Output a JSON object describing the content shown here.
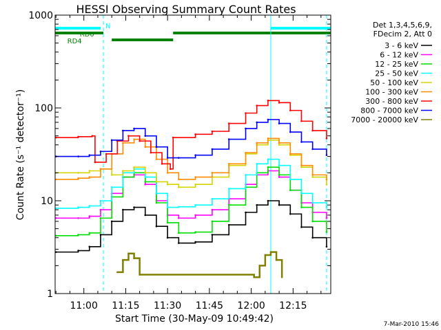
{
  "chart_data": {
    "type": "line",
    "title": "HESSI Observing Summary Count Rates",
    "xlabel": "Start Time (30-May-09 10:49:42)",
    "ylabel": "Count Rate (s⁻¹ detector⁻¹)",
    "yscale": "log",
    "ylim": [
      1,
      1000
    ],
    "xlim": [
      "10:49:42",
      "12:28:30"
    ],
    "x_ticks": [
      "11:00",
      "11:15",
      "11:30",
      "11:45",
      "12:00",
      "12:15"
    ],
    "y_ticks": [
      "1",
      "10",
      "100",
      "1000"
    ],
    "footer": "7-Mar-2010 15:46",
    "legend_header": [
      "Det 1,3,4,5,6,9,",
      "FDecim 2, Att 0"
    ],
    "legend_position": "right",
    "series": [
      {
        "name": "3 - 6 keV",
        "color": "#000000",
        "x": [
          "10:50",
          "10:58",
          "11:02",
          "11:06",
          "11:10",
          "11:14",
          "11:18",
          "11:22",
          "11:26",
          "11:30",
          "11:34",
          "11:40",
          "11:46",
          "11:52",
          "11:58",
          "12:02",
          "12:06",
          "12:10",
          "12:14",
          "12:18",
          "12:22",
          "12:27"
        ],
        "values": [
          2.8,
          2.9,
          3.2,
          4.3,
          6.0,
          8.0,
          8.5,
          7.0,
          5.3,
          4.0,
          3.5,
          3.6,
          4.3,
          5.5,
          7.5,
          9.0,
          10.0,
          9.0,
          7.2,
          5.2,
          4.0,
          3.2
        ]
      },
      {
        "name": "6 - 12 keV",
        "color": "#ff00ff",
        "x": [
          "10:50",
          "10:58",
          "11:02",
          "11:06",
          "11:10",
          "11:14",
          "11:18",
          "11:22",
          "11:26",
          "11:30",
          "11:34",
          "11:40",
          "11:46",
          "11:52",
          "11:58",
          "12:02",
          "12:06",
          "12:10",
          "12:14",
          "12:18",
          "12:22",
          "12:27"
        ],
        "values": [
          6.5,
          6.5,
          6.8,
          8.0,
          12.0,
          18.0,
          19.0,
          15.0,
          10.0,
          7.0,
          6.5,
          7.0,
          8.0,
          10.5,
          15.0,
          19.0,
          21.0,
          18.0,
          13.0,
          9.5,
          7.5,
          6.5
        ]
      },
      {
        "name": "12 - 25 keV",
        "color": "#00dd00",
        "x": [
          "10:50",
          "10:58",
          "11:02",
          "11:06",
          "11:10",
          "11:14",
          "11:18",
          "11:22",
          "11:26",
          "11:30",
          "11:34",
          "11:40",
          "11:46",
          "11:52",
          "11:58",
          "12:02",
          "12:06",
          "12:10",
          "12:14",
          "12:18",
          "12:22",
          "12:27"
        ],
        "values": [
          4.2,
          4.3,
          4.5,
          6.5,
          11.0,
          18.0,
          20.0,
          16.0,
          9.5,
          5.8,
          4.5,
          4.6,
          6.0,
          9.0,
          14.0,
          20.0,
          23.0,
          19.0,
          13.0,
          8.5,
          6.0,
          4.6
        ]
      },
      {
        "name": "25 - 50 keV",
        "color": "#00ffff",
        "x": [
          "10:50",
          "10:58",
          "11:02",
          "11:06",
          "11:10",
          "11:14",
          "11:18",
          "11:22",
          "11:26",
          "11:30",
          "11:34",
          "11:40",
          "11:46",
          "11:52",
          "11:58",
          "12:02",
          "12:06",
          "12:10",
          "12:14",
          "12:18",
          "12:22",
          "12:27"
        ],
        "values": [
          8.3,
          8.5,
          8.8,
          10.0,
          14.0,
          20.0,
          22.0,
          18.0,
          12.0,
          8.5,
          8.6,
          9.0,
          10.5,
          13.5,
          19.0,
          25.0,
          28.0,
          24.0,
          17.0,
          12.0,
          9.5,
          8.5
        ]
      },
      {
        "name": "50 - 100 keV",
        "color": "#d4d400",
        "x": [
          "10:50",
          "10:58",
          "11:02",
          "11:06",
          "11:10",
          "11:14",
          "11:18",
          "11:22",
          "11:26",
          "11:30",
          "11:34",
          "11:40",
          "11:46",
          "11:52",
          "11:58",
          "12:02",
          "12:06",
          "12:10",
          "12:14",
          "12:18",
          "12:22",
          "12:27"
        ],
        "values": [
          20,
          20,
          21,
          22,
          19,
          21,
          23,
          20,
          16,
          15,
          14,
          15,
          18,
          24,
          32,
          40,
          45,
          40,
          31,
          23,
          18,
          15
        ]
      },
      {
        "name": "100 - 300 keV",
        "color": "#ff8c00",
        "x": [
          "10:50",
          "10:58",
          "11:02",
          "11:06",
          "11:10",
          "11:14",
          "11:18",
          "11:22",
          "11:26",
          "11:30",
          "11:34",
          "11:40",
          "11:46",
          "11:52",
          "11:58",
          "12:02",
          "12:06",
          "12:10",
          "12:14",
          "12:18",
          "12:22",
          "12:27"
        ],
        "values": [
          17,
          17.5,
          18,
          22,
          32,
          42,
          46,
          38,
          28,
          20,
          17,
          18,
          20,
          25,
          33,
          42,
          47,
          42,
          32,
          24,
          19,
          17
        ]
      },
      {
        "name": "300 - 800 keV",
        "color": "#ff0000",
        "x": [
          "10:50",
          "10:58",
          "11:03",
          "11:04",
          "11:08",
          "11:12",
          "11:16",
          "11:20",
          "11:24",
          "11:28",
          "11:31",
          "11:32",
          "11:40",
          "11:46",
          "11:52",
          "11:58",
          "12:02",
          "12:06",
          "12:10",
          "12:14",
          "12:18",
          "12:22",
          "12:27"
        ],
        "values": [
          48,
          49,
          50,
          26,
          32,
          44,
          50,
          44,
          33,
          25,
          22,
          48,
          52,
          56,
          68,
          88,
          106,
          120,
          114,
          94,
          72,
          57,
          47
        ]
      },
      {
        "name": "800 - 7000 keV",
        "color": "#0000ff",
        "x": [
          "10:50",
          "10:58",
          "11:02",
          "11:06",
          "11:10",
          "11:14",
          "11:18",
          "11:22",
          "11:26",
          "11:30",
          "11:34",
          "11:40",
          "11:46",
          "11:52",
          "11:58",
          "12:02",
          "12:06",
          "12:10",
          "12:14",
          "12:18",
          "12:22",
          "12:27"
        ],
        "values": [
          30,
          30,
          31,
          34,
          45,
          57,
          60,
          50,
          38,
          29,
          29,
          31,
          36,
          46,
          60,
          70,
          75,
          68,
          55,
          43,
          36,
          31
        ]
      },
      {
        "name": "7000 - 20000 keV",
        "color": "#808000",
        "x": [
          "11:12",
          "11:14",
          "11:16",
          "11:18",
          "11:20",
          "12:01",
          "12:03",
          "12:05",
          "12:07",
          "12:09",
          "12:11"
        ],
        "values": [
          1.7,
          2.3,
          2.7,
          2.4,
          1.6,
          1.5,
          2.0,
          2.6,
          2.8,
          2.3,
          1.5
        ]
      }
    ],
    "markers": {
      "vertical_lines_dashed": [
        "11:07",
        "12:27"
      ],
      "vertical_lines_solid": [
        "12:07"
      ],
      "flag_bars": [
        {
          "label": "N",
          "color": "#00ffff",
          "spans": [
            [
              "10:49:42",
              "11:06"
            ],
            [
              "12:07",
              "12:28:30"
            ]
          ]
        },
        {
          "label": "RD0",
          "color": "#008000",
          "spans": [
            [
              "10:49:42",
              "11:07"
            ],
            [
              "11:32",
              "12:28:30"
            ]
          ]
        },
        {
          "label": "RD4",
          "color": "#008000",
          "spans": [
            [
              "11:10",
              "11:32"
            ]
          ]
        }
      ]
    }
  }
}
